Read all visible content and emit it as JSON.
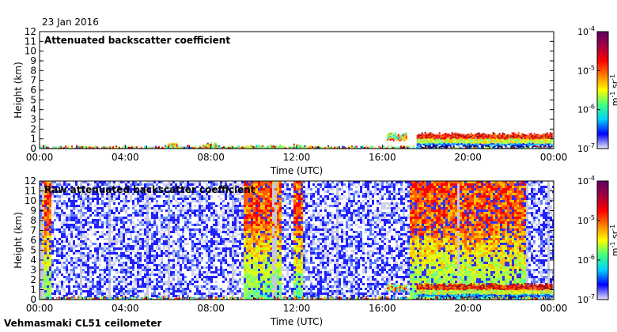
{
  "date_label": "23 Jan 2016",
  "instrument_label": "Vehmasmaki CL51 ceilometer",
  "chart_data": [
    {
      "type": "heatmap",
      "title": "Attenuated backscatter coefficient",
      "xlabel": "Time (UTC)",
      "ylabel": "Height (km)",
      "xlim": [
        "00:00",
        "24:00"
      ],
      "ylim": [
        0,
        12
      ],
      "x_ticks": [
        "00:00",
        "04:00",
        "08:00",
        "12:00",
        "16:00",
        "20:00",
        "00:00"
      ],
      "y_ticks": [
        0,
        1,
        2,
        3,
        4,
        5,
        6,
        7,
        8,
        9,
        10,
        11,
        12
      ],
      "colorbar": {
        "scale": "log",
        "range": [
          1e-07,
          0.0001
        ],
        "ticks": [
          "10",
          "10",
          "10",
          "10"
        ],
        "tick_exponents": [
          "-4",
          "-5",
          "-6",
          "-7"
        ],
        "label": "m",
        "label_exp1": "-1",
        "label_mid": " sr",
        "label_exp2": "-1"
      },
      "features": [
        {
          "name": "surface layer",
          "time_start_h": 0,
          "time_end_h": 24,
          "height_top_km": 0.2
        },
        {
          "name": "cloud",
          "time_start_h": 6.0,
          "time_end_h": 6.4,
          "height_bottom_km": 0.25,
          "height_top_km": 0.6
        },
        {
          "name": "cloud",
          "time_start_h": 7.6,
          "time_end_h": 8.3,
          "height_bottom_km": 0.1,
          "height_top_km": 0.5
        },
        {
          "name": "low cloud",
          "time_start_h": 9.2,
          "time_end_h": 11.2,
          "height_bottom_km": 0.05,
          "height_top_km": 0.3
        },
        {
          "name": "low cloud",
          "time_start_h": 11.7,
          "time_end_h": 12.2,
          "height_bottom_km": 0.05,
          "height_top_km": 0.35
        },
        {
          "name": "cloud layer",
          "time_start_h": 16.2,
          "time_end_h": 17.1,
          "height_bottom_km": 0.9,
          "height_top_km": 1.55
        },
        {
          "name": "stratocumulus layer",
          "time_start_h": 17.6,
          "time_end_h": 23.9,
          "height_bottom_km": 0.2,
          "height_top_km": 1.55
        }
      ]
    },
    {
      "type": "heatmap",
      "title": "Raw attenuated backscatter coefficient",
      "xlabel": "Time (UTC)",
      "ylabel": "Height (km)",
      "xlim": [
        "00:00",
        "24:00"
      ],
      "ylim": [
        0,
        12
      ],
      "x_ticks": [
        "00:00",
        "04:00",
        "08:00",
        "12:00",
        "16:00",
        "20:00",
        "00:00"
      ],
      "y_ticks": [
        0,
        1,
        2,
        3,
        4,
        5,
        6,
        7,
        8,
        9,
        10,
        11,
        12
      ],
      "colorbar": {
        "scale": "log",
        "range": [
          1e-07,
          0.0001
        ],
        "ticks": [
          "10",
          "10",
          "10",
          "10"
        ],
        "tick_exponents": [
          "-4",
          "-5",
          "-6",
          "-7"
        ],
        "label": "m",
        "label_exp1": "-1",
        "label_mid": " sr",
        "label_exp2": "-1"
      },
      "features": [
        {
          "name": "noise background",
          "time_start_h": 0,
          "time_end_h": 24,
          "height_bottom_km": 0,
          "height_top_km": 12
        },
        {
          "name": "elevated signal",
          "time_start_h": 0.1,
          "time_end_h": 0.5,
          "height_bottom_km": 0,
          "height_top_km": 12
        },
        {
          "name": "elevated signal",
          "time_start_h": 9.5,
          "time_end_h": 11.2,
          "height_bottom_km": 0,
          "height_top_km": 12
        },
        {
          "name": "elevated signal",
          "time_start_h": 11.8,
          "time_end_h": 12.2,
          "height_bottom_km": 0,
          "height_top_km": 12
        },
        {
          "name": "elevated signal",
          "time_start_h": 17.2,
          "time_end_h": 22.7,
          "height_bottom_km": 0,
          "height_top_km": 12
        },
        {
          "name": "cloud layer",
          "time_start_h": 16.2,
          "time_end_h": 17.1,
          "height_bottom_km": 0.9,
          "height_top_km": 1.55
        },
        {
          "name": "stratocumulus layer",
          "time_start_h": 17.6,
          "time_end_h": 23.9,
          "height_bottom_km": 0.2,
          "height_top_km": 1.55
        },
        {
          "name": "surface layer",
          "time_start_h": 0,
          "time_end_h": 24,
          "height_top_km": 0.2
        }
      ]
    }
  ]
}
